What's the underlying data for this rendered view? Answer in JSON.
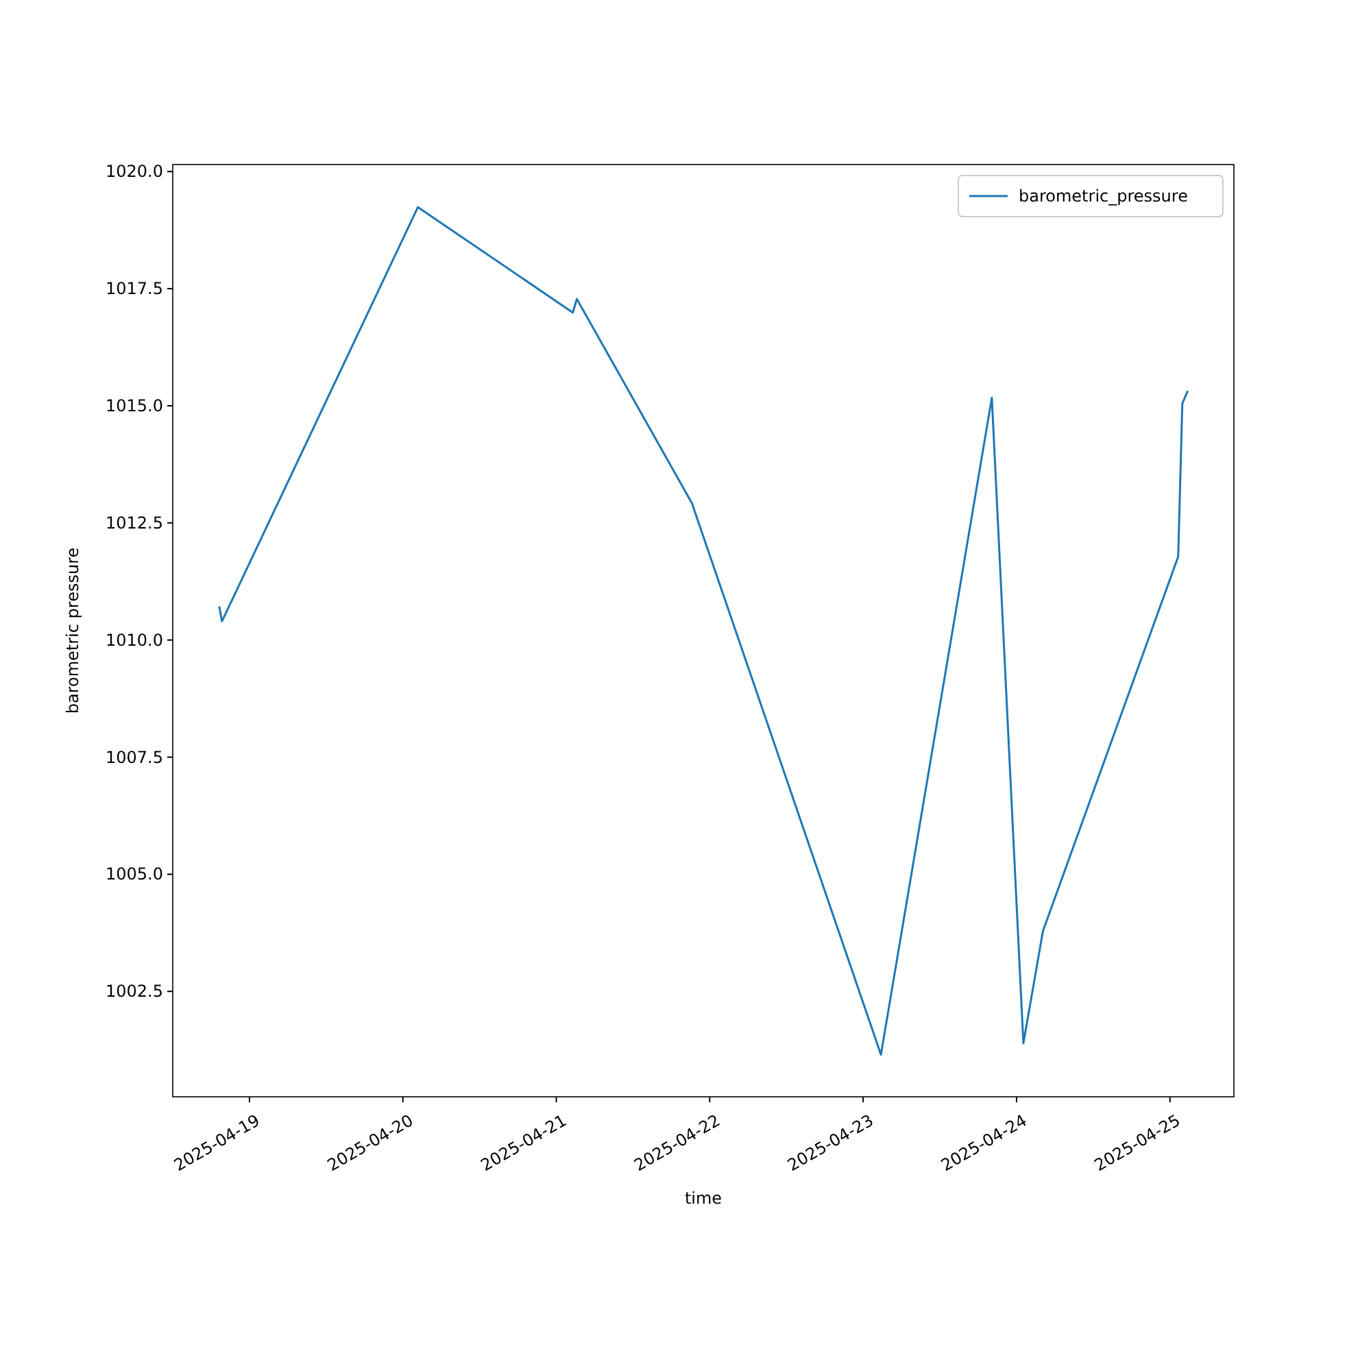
{
  "chart_data": {
    "type": "line",
    "xlabel": "time",
    "ylabel": "barometric pressure",
    "x": [
      "2025-04-18T19:16",
      "2025-04-18T19:42",
      "2025-04-20T02:21",
      "2025-04-21T02:35",
      "2025-04-21T03:13",
      "2025-04-21T21:13",
      "2025-04-23T02:47",
      "2025-04-23T20:08",
      "2025-04-24T01:04",
      "2025-04-24T04:08",
      "2025-04-25T01:17",
      "2025-04-25T01:56",
      "2025-04-25T02:47"
    ],
    "series": [
      {
        "name": "barometric_pressure",
        "color": "#1f77b4",
        "values": [
          1010.72,
          1010.4,
          1019.24,
          1016.99,
          1017.28,
          1012.92,
          1001.15,
          1015.17,
          1001.39,
          1003.79,
          1011.78,
          1015.05,
          1015.32
        ]
      }
    ],
    "xlim": [
      "2025-04-18T12:00",
      "2025-04-25T10:00"
    ],
    "xticks": [
      "2025-04-19",
      "2025-04-20",
      "2025-04-21",
      "2025-04-22",
      "2025-04-23",
      "2025-04-24",
      "2025-04-25"
    ],
    "ylim": [
      1000.25,
      1020.15
    ],
    "yticks": [
      {
        "value": 1002.5,
        "label": "1002.5"
      },
      {
        "value": 1005,
        "label": "1005.0"
      },
      {
        "value": 1007.5,
        "label": "1007.5"
      },
      {
        "value": 1010,
        "label": "1010.0"
      },
      {
        "value": 1012.5,
        "label": "1012.5"
      },
      {
        "value": 1015,
        "label": "1015.0"
      },
      {
        "value": 1017.5,
        "label": "1017.5"
      },
      {
        "value": 1020,
        "label": "1020.0"
      }
    ],
    "grid": false,
    "legend": "top right",
    "marker": "none",
    "line_style": "solid"
  }
}
